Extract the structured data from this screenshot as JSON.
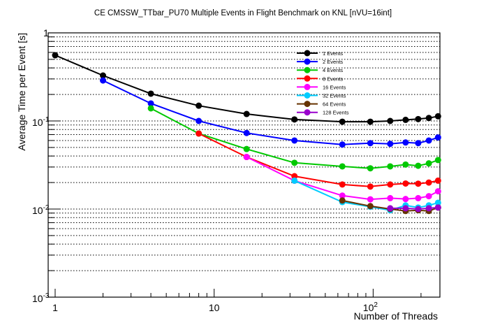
{
  "chart_data": {
    "type": "line",
    "title": "CE CMSSW_TTbar_PU70 Multiple Events in Flight Benchmark on KNL [nVU=16int]",
    "xlabel": "Number of Threads",
    "ylabel": "Average Time per Event [s]",
    "xscale": "log",
    "yscale": "log",
    "xlim": [
      0.904,
      263
    ],
    "ylim": [
      0.001,
      1
    ],
    "x_ticks": [
      {
        "value": 1,
        "base": "1",
        "exp": ""
      },
      {
        "value": 10,
        "base": "10",
        "exp": ""
      },
      {
        "value": 100,
        "base": "10",
        "exp": "2"
      }
    ],
    "y_ticks": [
      {
        "value": 1,
        "base": "1",
        "exp": ""
      },
      {
        "value": 0.1,
        "base": "10",
        "exp": "-1"
      },
      {
        "value": 0.01,
        "base": "10",
        "exp": "-2"
      },
      {
        "value": 0.001,
        "base": "10",
        "exp": "-3"
      }
    ],
    "grid": "horizontal dotted",
    "legend_position": "top-right",
    "series": [
      {
        "name": "1 Events",
        "color": "#000000",
        "x": [
          1,
          2,
          4,
          8,
          16,
          32,
          64,
          96,
          128,
          160,
          192,
          224,
          256
        ],
        "y": [
          0.557,
          0.328,
          0.204,
          0.149,
          0.12,
          0.104,
          0.098,
          0.098,
          0.1,
          0.103,
          0.105,
          0.108,
          0.113
        ]
      },
      {
        "name": "2 Events",
        "color": "#0000ff",
        "x": [
          2,
          4,
          8,
          16,
          32,
          64,
          96,
          128,
          160,
          192,
          224,
          256
        ],
        "y": [
          0.288,
          0.158,
          0.1,
          0.073,
          0.06,
          0.054,
          0.056,
          0.055,
          0.057,
          0.056,
          0.06,
          0.065
        ]
      },
      {
        "name": "4 Events",
        "color": "#00c800",
        "x": [
          4,
          8,
          16,
          32,
          64,
          96,
          128,
          160,
          192,
          224,
          256
        ],
        "y": [
          0.139,
          0.072,
          0.048,
          0.0335,
          0.0305,
          0.029,
          0.0305,
          0.032,
          0.031,
          0.033,
          0.036
        ]
      },
      {
        "name": "8 Events",
        "color": "#ff0000",
        "x": [
          8,
          16,
          32,
          64,
          96,
          128,
          160,
          192,
          224,
          256
        ],
        "y": [
          0.072,
          0.039,
          0.0236,
          0.019,
          0.018,
          0.019,
          0.0195,
          0.0194,
          0.02,
          0.021
        ]
      },
      {
        "name": "16 Events",
        "color": "#ff00ff",
        "x": [
          16,
          32,
          64,
          96,
          128,
          160,
          192,
          224,
          256
        ],
        "y": [
          0.039,
          0.021,
          0.0142,
          0.0129,
          0.0133,
          0.013,
          0.0133,
          0.014,
          0.0159
        ]
      },
      {
        "name": "32 Events",
        "color": "#00ccff",
        "x": [
          32,
          64,
          96,
          128,
          160,
          192,
          224,
          256
        ],
        "y": [
          0.021,
          0.012,
          0.0106,
          0.0097,
          0.011,
          0.0104,
          0.011,
          0.0118
        ]
      },
      {
        "name": "64 Events",
        "color": "#663300",
        "x": [
          64,
          96,
          128,
          160,
          192,
          224,
          256
        ],
        "y": [
          0.0125,
          0.0108,
          0.01,
          0.0095,
          0.0097,
          0.0095,
          0.0104
        ]
      },
      {
        "name": "128 Events",
        "color": "#9900cc",
        "x": [
          128,
          160,
          192,
          224,
          256
        ],
        "y": [
          0.0102,
          0.0102,
          0.01,
          0.0102,
          0.0104
        ]
      }
    ]
  }
}
